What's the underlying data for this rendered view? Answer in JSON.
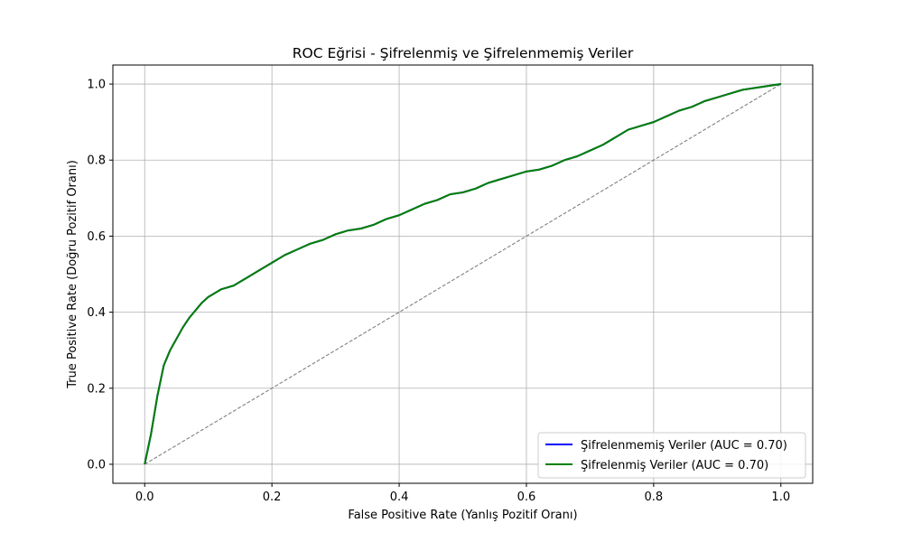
{
  "chart_data": {
    "type": "line",
    "title": "ROC Eğrisi - Şifrelenmiş ve Şifrelenmemiş Veriler",
    "xlabel": "False Positive Rate (Yanlış Pozitif Oranı)",
    "ylabel": "True Positive Rate (Doğru Pozitif Oranı)",
    "xlim": [
      -0.05,
      1.05
    ],
    "ylim": [
      -0.05,
      1.05
    ],
    "xticks": [
      0.0,
      0.2,
      0.4,
      0.6,
      0.8,
      1.0
    ],
    "yticks": [
      0.0,
      0.2,
      0.4,
      0.6,
      0.8,
      1.0
    ],
    "xtick_labels": [
      "0.0",
      "0.2",
      "0.4",
      "0.6",
      "0.8",
      "1.0"
    ],
    "ytick_labels": [
      "0.0",
      "0.2",
      "0.4",
      "0.6",
      "0.8",
      "1.0"
    ],
    "grid": true,
    "legend_position": "lower-right",
    "series": [
      {
        "name": "Şifrelenmemiş Veriler (AUC = 0.70)",
        "color": "#0000ff",
        "style": "solid",
        "x": [
          0.0,
          0.005,
          0.01,
          0.015,
          0.02,
          0.025,
          0.03,
          0.04,
          0.05,
          0.06,
          0.07,
          0.08,
          0.09,
          0.1,
          0.12,
          0.14,
          0.15,
          0.16,
          0.18,
          0.2,
          0.22,
          0.24,
          0.26,
          0.28,
          0.3,
          0.32,
          0.34,
          0.36,
          0.38,
          0.4,
          0.42,
          0.44,
          0.46,
          0.48,
          0.5,
          0.52,
          0.54,
          0.56,
          0.58,
          0.6,
          0.62,
          0.64,
          0.66,
          0.68,
          0.7,
          0.72,
          0.74,
          0.76,
          0.78,
          0.8,
          0.82,
          0.84,
          0.86,
          0.88,
          0.9,
          0.92,
          0.94,
          0.96,
          0.98,
          1.0
        ],
        "y": [
          0.0,
          0.04,
          0.08,
          0.13,
          0.18,
          0.22,
          0.26,
          0.3,
          0.33,
          0.36,
          0.385,
          0.405,
          0.425,
          0.44,
          0.46,
          0.47,
          0.48,
          0.49,
          0.51,
          0.53,
          0.55,
          0.565,
          0.58,
          0.59,
          0.605,
          0.615,
          0.62,
          0.63,
          0.645,
          0.655,
          0.67,
          0.685,
          0.695,
          0.71,
          0.715,
          0.725,
          0.74,
          0.75,
          0.76,
          0.77,
          0.775,
          0.785,
          0.8,
          0.81,
          0.825,
          0.84,
          0.86,
          0.88,
          0.89,
          0.9,
          0.915,
          0.93,
          0.94,
          0.955,
          0.965,
          0.975,
          0.985,
          0.99,
          0.995,
          1.0
        ]
      },
      {
        "name": "Şifrelenmiş Veriler (AUC = 0.70)",
        "color": "#008000",
        "style": "solid",
        "x": [
          0.0,
          0.005,
          0.01,
          0.015,
          0.02,
          0.025,
          0.03,
          0.04,
          0.05,
          0.06,
          0.07,
          0.08,
          0.09,
          0.1,
          0.12,
          0.14,
          0.15,
          0.16,
          0.18,
          0.2,
          0.22,
          0.24,
          0.26,
          0.28,
          0.3,
          0.32,
          0.34,
          0.36,
          0.38,
          0.4,
          0.42,
          0.44,
          0.46,
          0.48,
          0.5,
          0.52,
          0.54,
          0.56,
          0.58,
          0.6,
          0.62,
          0.64,
          0.66,
          0.68,
          0.7,
          0.72,
          0.74,
          0.76,
          0.78,
          0.8,
          0.82,
          0.84,
          0.86,
          0.88,
          0.9,
          0.92,
          0.94,
          0.96,
          0.98,
          1.0
        ],
        "y": [
          0.0,
          0.04,
          0.08,
          0.13,
          0.18,
          0.22,
          0.26,
          0.3,
          0.33,
          0.36,
          0.385,
          0.405,
          0.425,
          0.44,
          0.46,
          0.47,
          0.48,
          0.49,
          0.51,
          0.53,
          0.55,
          0.565,
          0.58,
          0.59,
          0.605,
          0.615,
          0.62,
          0.63,
          0.645,
          0.655,
          0.67,
          0.685,
          0.695,
          0.71,
          0.715,
          0.725,
          0.74,
          0.75,
          0.76,
          0.77,
          0.775,
          0.785,
          0.8,
          0.81,
          0.825,
          0.84,
          0.86,
          0.88,
          0.89,
          0.9,
          0.915,
          0.93,
          0.94,
          0.955,
          0.965,
          0.975,
          0.985,
          0.99,
          0.995,
          1.0
        ]
      },
      {
        "color": "#808080",
        "style": "dashed",
        "x": [
          0.0,
          1.0
        ],
        "y": [
          0.0,
          1.0
        ]
      }
    ]
  }
}
